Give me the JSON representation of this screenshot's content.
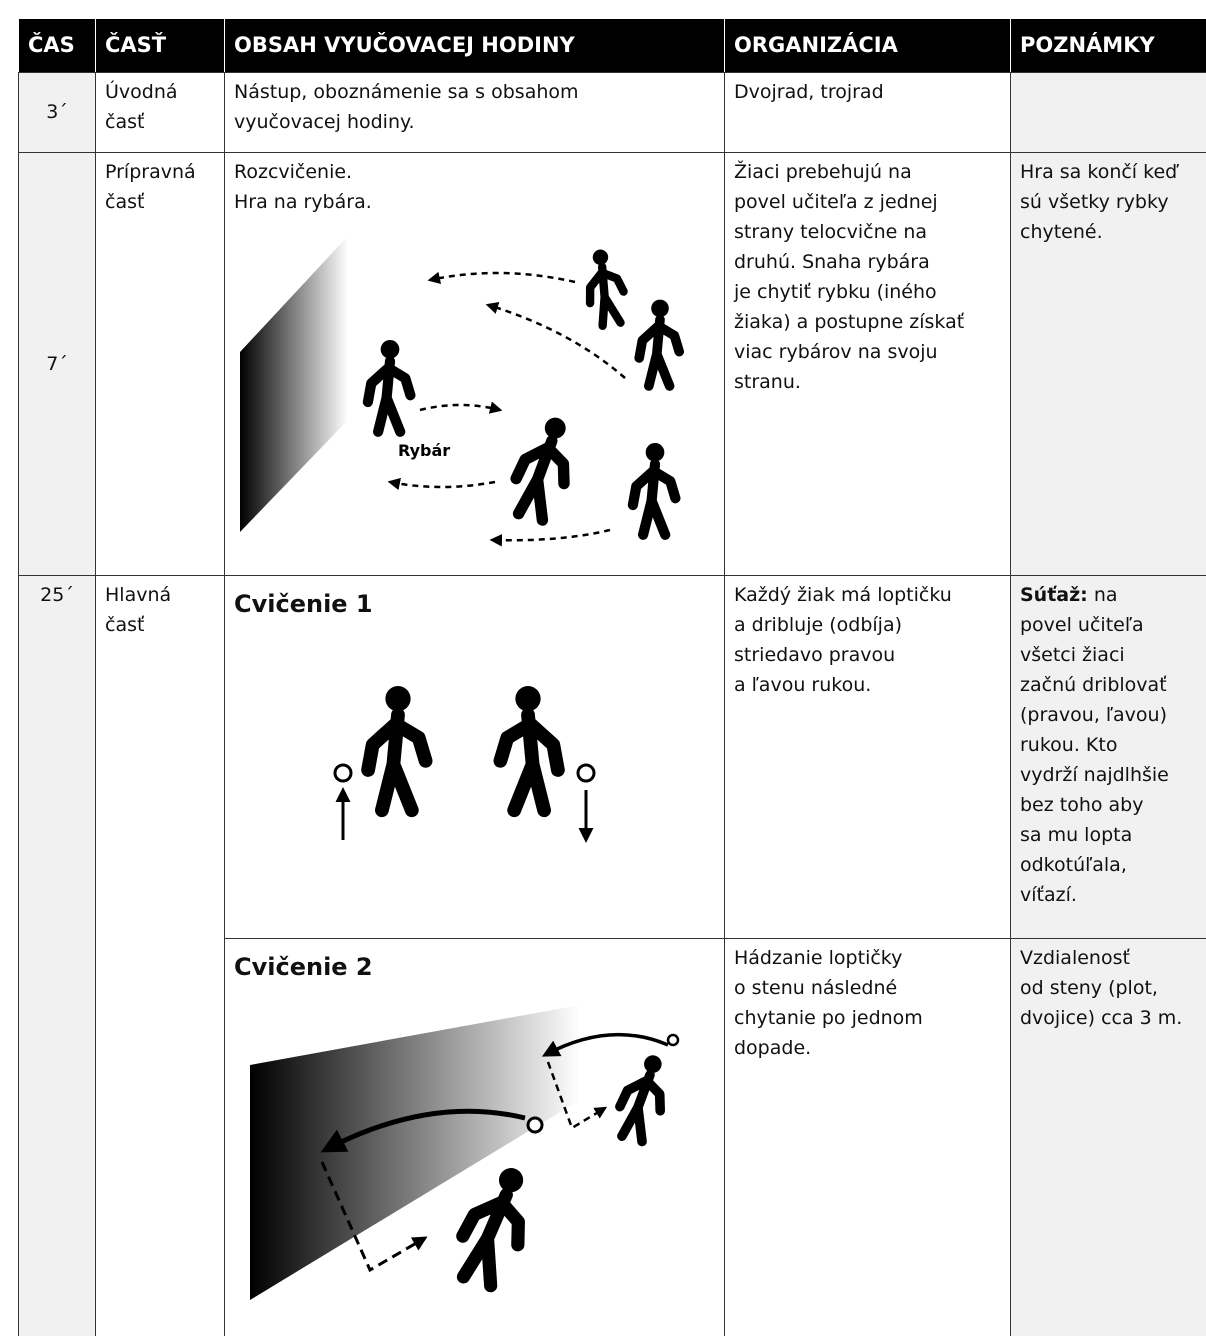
{
  "header": [
    "ČAS",
    "ČASŤ",
    "OBSAH VYUČOVACEJ HODINY",
    "ORGANIZÁCIA",
    "POZNÁMKY"
  ],
  "rows": [
    {
      "time": "3´",
      "part": [
        "Úvodná",
        "časť"
      ],
      "content": [
        "Nástup, oboznámenie sa s obsahom",
        "vyučovacej hodiny."
      ],
      "organization": [
        "Dvojrad, trojrad"
      ]
    },
    {
      "time": "7´",
      "part": [
        "Prípravná",
        "časť"
      ],
      "content": [
        "Rozcvičenie.",
        "Hra na rybára."
      ],
      "figure_label": "Rybár",
      "organization": [
        "Žiaci prebehujú na",
        "povel učiteľa z jednej",
        "strany telocvične na",
        "druhú. Snaha rybára",
        "je chytiť rybku (iného",
        "žiaka) a postupne získať",
        "viac rybárov na svoju",
        "stranu."
      ],
      "notes": [
        "Hra sa končí keď",
        "sú všetky rybky",
        "chytené."
      ]
    },
    {
      "time": "25´",
      "part": [
        "Hlavná",
        "časť"
      ],
      "exercises": [
        {
          "title": "Cvičenie 1",
          "organization": [
            "Každý žiak má loptičku",
            "a dribluje (odbíja)",
            "striedavo pravou",
            "a ľavou rukou."
          ],
          "notes_bold": "Súťaž:",
          "notes": [
            " na",
            "povel učiteľa",
            "všetci žiaci",
            "začnú driblovať",
            "(pravou, ľavou)",
            "rukou. Kto",
            "vydrží najdlhšie",
            "bez toho aby",
            "sa mu lopta",
            "odkotúľala,",
            "víťazí."
          ]
        },
        {
          "title": "Cvičenie 2",
          "organization": [
            "Hádzanie loptičky",
            "o stenu následné",
            "chytanie po jednom",
            "dopade."
          ],
          "notes": [
            "Vzdialenosť",
            "od steny (plot,",
            "dvojice) cca 3 m."
          ]
        }
      ]
    }
  ]
}
